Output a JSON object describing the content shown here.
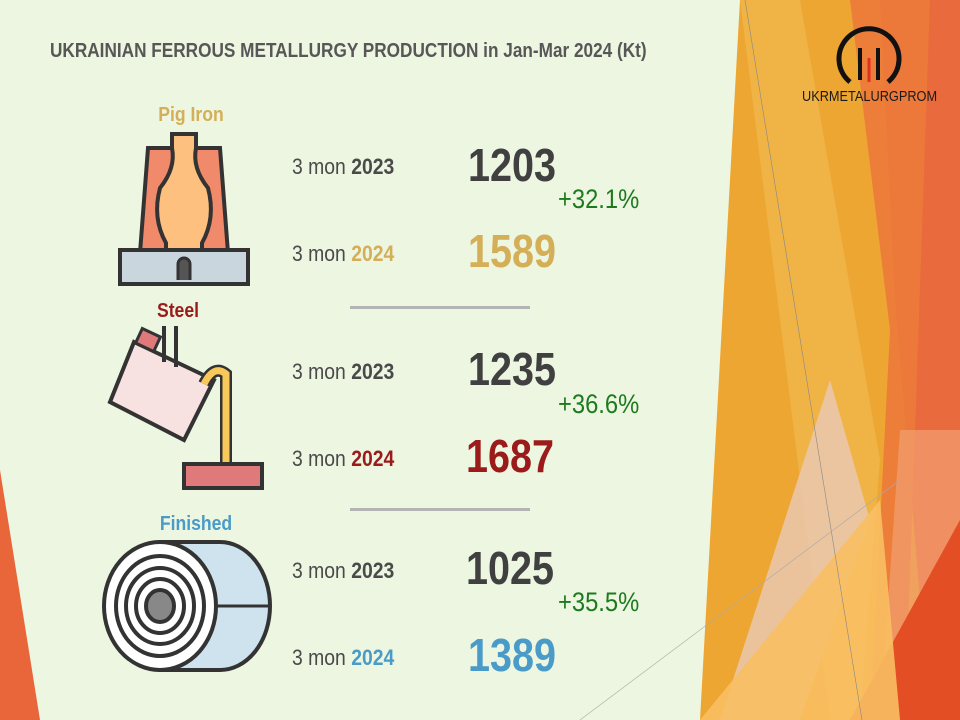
{
  "title": "UKRAINIAN FERROUS METALLURGY PRODUCTION in Jan-Mar 2024 (Kt)",
  "logo": {
    "text": "UKRMETALURGPROM"
  },
  "colors": {
    "pig_iron": "#D4AF57",
    "steel": "#9B1B1B",
    "finished": "#4A9BC8",
    "growth": "#1E7A1E",
    "value_2023": "#404040",
    "background": "#ECF6E1"
  },
  "sections": [
    {
      "name": "Pig Iron",
      "icon": "blast-furnace-icon",
      "row_2023": {
        "prefix": "3 mon ",
        "year": "2023",
        "value": "1203"
      },
      "row_2024": {
        "prefix": "3 mon ",
        "year": "2024",
        "value": "1589"
      },
      "change": "+32.1%"
    },
    {
      "name": "Steel",
      "icon": "steel-ladle-icon",
      "row_2023": {
        "prefix": "3 mon ",
        "year": "2023",
        "value": "1235"
      },
      "row_2024": {
        "prefix": "3 mon ",
        "year": "2024",
        "value": "1687"
      },
      "change": "+36.6%"
    },
    {
      "name": "Finished",
      "icon": "steel-coil-icon",
      "row_2023": {
        "prefix": "3 mon ",
        "year": "2023",
        "value": "1025"
      },
      "row_2024": {
        "prefix": "3 mon ",
        "year": "2024",
        "value": "1389"
      },
      "change": "+35.5%"
    }
  ]
}
